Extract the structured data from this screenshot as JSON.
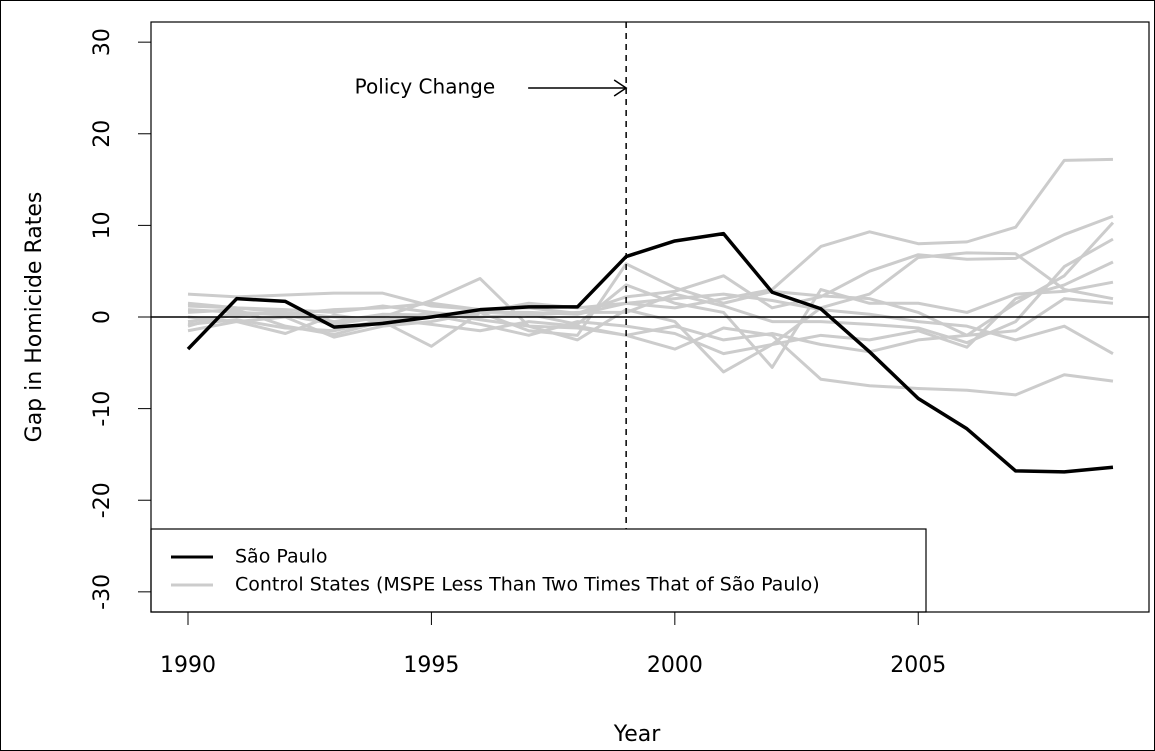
{
  "chart_data": {
    "type": "line",
    "x_label": "Year",
    "y_label": "Gap in Homicide Rates",
    "x": [
      1990,
      1991,
      1992,
      1993,
      1994,
      1995,
      1996,
      1997,
      1998,
      1999,
      2000,
      2001,
      2002,
      2003,
      2004,
      2005,
      2006,
      2007,
      2008,
      2009
    ],
    "series": [
      {
        "name": "Control States (MSPE Less Than Two Times That of São Paulo)",
        "color": "#cccccc",
        "values": [
          [
            1.2,
            1.0,
            0.5,
            -0.5,
            0.3,
            0.2,
            0.5,
            0.5,
            0.3,
            1.5,
            1.0,
            2.0,
            3.0,
            7.7,
            9.3,
            8.0,
            8.2,
            9.8,
            17.1,
            17.2
          ],
          [
            2.5,
            2.2,
            2.4,
            2.6,
            2.6,
            1.2,
            0.8,
            1.0,
            0.4,
            2.2,
            2.8,
            4.5,
            1.0,
            2.2,
            5.0,
            6.8,
            6.3,
            6.4,
            9.0,
            11.0
          ],
          [
            0.5,
            0.8,
            -1.0,
            -1.9,
            -0.5,
            -3.2,
            0.5,
            -1.5,
            -2.0,
            5.8,
            3.2,
            1.5,
            2.8,
            2.3,
            2.0,
            0.5,
            -2.0,
            1.5,
            4.5,
            10.3
          ],
          [
            -1.0,
            0.5,
            0.2,
            -0.8,
            0.0,
            1.8,
            4.2,
            -1.0,
            -2.5,
            0.8,
            -0.5,
            -6.0,
            -3.0,
            1.0,
            2.5,
            6.5,
            7.0,
            6.9,
            3.0,
            2.0
          ],
          [
            -1.5,
            -0.5,
            -1.8,
            0.2,
            -0.5,
            0.5,
            -0.3,
            -1.0,
            -1.2,
            -2.0,
            -3.5,
            -1.2,
            -2.0,
            -6.8,
            -7.5,
            -7.8,
            -8.0,
            -8.5,
            -6.3,
            -7.0
          ],
          [
            0.0,
            -0.5,
            0.0,
            -2.2,
            -1.0,
            -0.5,
            0.5,
            1.5,
            1.0,
            1.5,
            2.0,
            2.5,
            1.8,
            0.8,
            0.3,
            -0.5,
            -1.0,
            -2.5,
            -1.0,
            -4.0
          ],
          [
            -0.8,
            -0.3,
            -1.2,
            -1.5,
            -0.3,
            0.2,
            -0.8,
            -2.0,
            -0.5,
            -1.0,
            -1.8,
            -4.0,
            -3.0,
            -2.0,
            -2.5,
            -1.5,
            -3.3,
            2.0,
            3.5,
            6.0
          ],
          [
            1.5,
            1.0,
            0.8,
            0.5,
            1.2,
            0.5,
            0.0,
            0.3,
            -0.8,
            3.5,
            1.5,
            0.5,
            -5.5,
            3.0,
            1.5,
            1.5,
            0.5,
            2.5,
            2.8,
            3.8
          ],
          [
            -0.5,
            0.2,
            0.5,
            0.0,
            -0.2,
            -0.8,
            -1.5,
            -0.5,
            -1.0,
            -2.0,
            -1.0,
            -2.5,
            -1.8,
            -3.0,
            -3.8,
            -2.5,
            -2.0,
            -1.5,
            2.0,
            1.5
          ],
          [
            0.8,
            0.5,
            0.3,
            0.8,
            1.0,
            1.5,
            0.8,
            0.2,
            0.5,
            0.5,
            2.5,
            1.2,
            -0.5,
            -0.5,
            -0.8,
            -1.2,
            -2.8,
            -0.5,
            5.5,
            8.5
          ]
        ]
      },
      {
        "name": "São Paulo",
        "color": "#000000",
        "values": [
          -3.5,
          2.0,
          1.7,
          -1.1,
          -0.7,
          0,
          0.8,
          1.1,
          1.1,
          6.6,
          8.3,
          9.1,
          2.7,
          0.9,
          -3.8,
          -8.9,
          -12.2,
          -16.8,
          -16.9,
          -16.4
        ]
      }
    ],
    "legend_order": [
      1,
      0
    ],
    "legend": "bottom-left",
    "annotation": {
      "text": "Policy Change",
      "x": 1999,
      "y": 25
    },
    "hline": 0,
    "xlim": [
      1989.24,
      2009.74
    ],
    "ylim": [
      -32.2,
      32.2
    ],
    "xticks": [
      1990,
      1995,
      2000,
      2005
    ],
    "yticks": [
      -30,
      -20,
      -10,
      0,
      10,
      20,
      30
    ]
  }
}
